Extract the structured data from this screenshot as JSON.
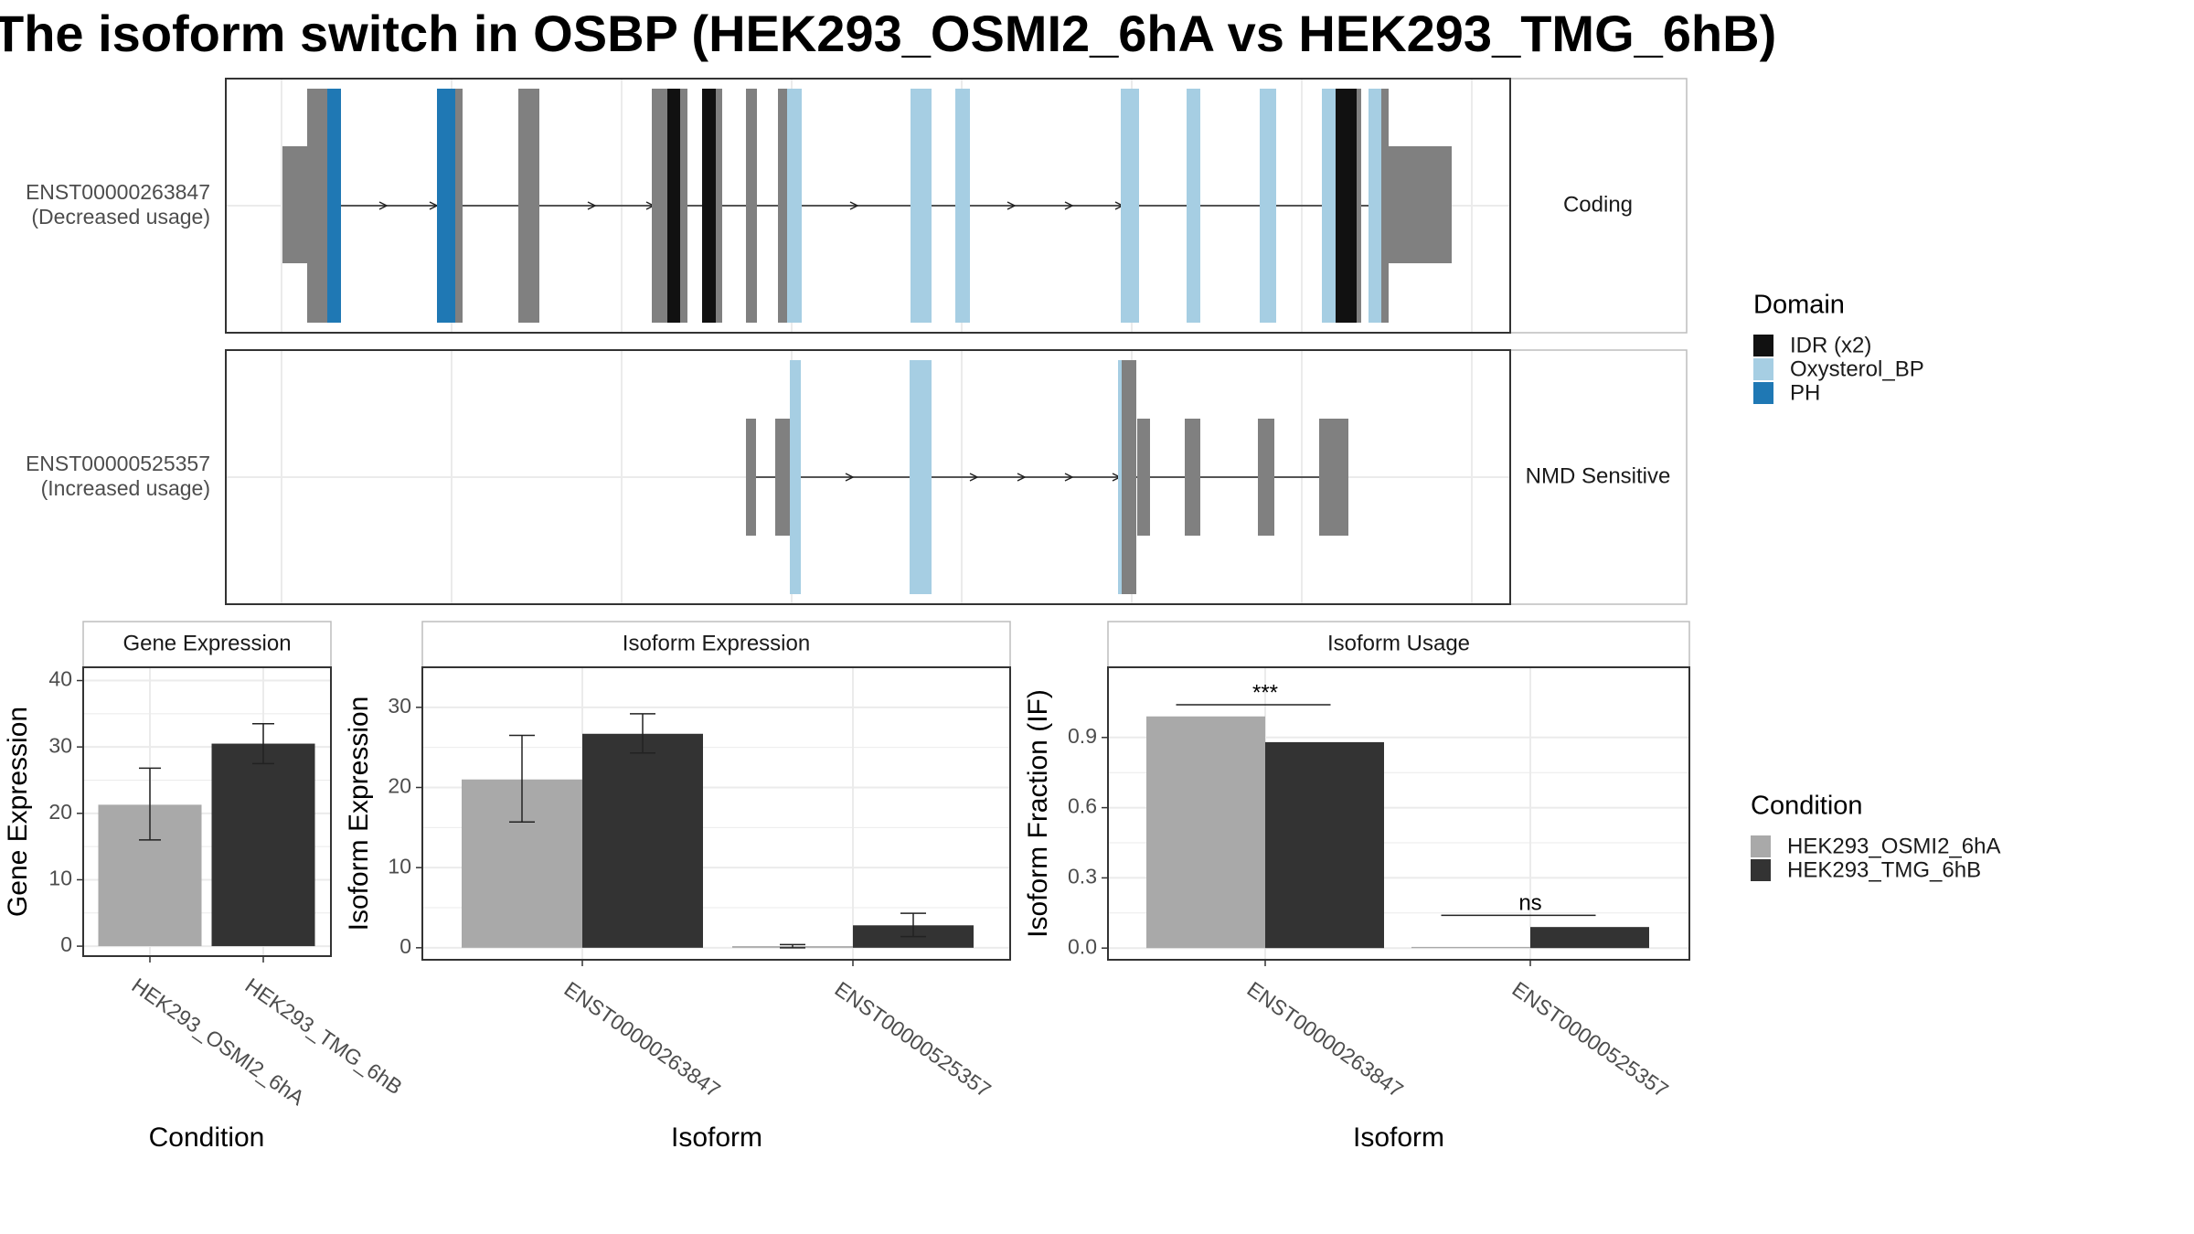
{
  "title": "The isoform switch in OSBP (HEK293_OSMI2_6hA vs HEK293_TMG_6hB)",
  "colors": {
    "idr": "#111111",
    "oxysterol_bp": "#a6cee3",
    "ph": "#1f78b4",
    "exon_gray": "#808080",
    "cond_a": "#a9a9a9",
    "cond_b": "#333333",
    "grid": "#ebebeb",
    "panel_border": "#333333",
    "strip_border": "#bdbdbd"
  },
  "structure": {
    "transcripts": [
      {
        "id": "ENST00000263847",
        "usage": "(Decreased usage)",
        "type": "Coding"
      },
      {
        "id": "ENST00000525357",
        "usage": "(Increased usage)",
        "type": "NMD Sensitive"
      }
    ],
    "legend_title": "Domain",
    "legend_items": [
      {
        "label": "IDR (x2)",
        "color_key": "idr"
      },
      {
        "label": "Oxysterol_BP",
        "color_key": "oxysterol_bp"
      },
      {
        "label": "PH",
        "color_key": "ph"
      }
    ]
  },
  "chart_data": [
    {
      "type": "bar",
      "title": "Gene Expression",
      "xlabel": "Condition",
      "ylabel": "Gene Expression",
      "categories": [
        "HEK293_OSMI2_6hA",
        "HEK293_TMG_6hB"
      ],
      "values": [
        21.3,
        30.5
      ],
      "error": [
        [
          16.0,
          26.8
        ],
        [
          27.5,
          33.5
        ]
      ],
      "ylim": [
        -1.5,
        42
      ],
      "yticks": [
        0,
        10,
        20,
        30,
        40
      ],
      "grid": true
    },
    {
      "type": "bar",
      "title": "Isoform Expression",
      "xlabel": "Isoform",
      "ylabel": "Isoform Expression",
      "categories": [
        "ENST00000263847",
        "ENST00000525357"
      ],
      "series": [
        {
          "name": "HEK293_OSMI2_6hA",
          "values": [
            21.0,
            0.2
          ],
          "error": [
            [
              15.7,
              26.5
            ],
            [
              0.0,
              0.4
            ]
          ]
        },
        {
          "name": "HEK293_TMG_6hB",
          "values": [
            26.7,
            2.8
          ],
          "error": [
            [
              24.3,
              29.2
            ],
            [
              1.4,
              4.3
            ]
          ]
        }
      ],
      "ylim": [
        -1.5,
        35
      ],
      "yticks": [
        0,
        10,
        20,
        30
      ],
      "grid": true
    },
    {
      "type": "bar",
      "title": "Isoform Usage",
      "xlabel": "Isoform",
      "ylabel": "Isoform Fraction (IF)",
      "categories": [
        "ENST00000263847",
        "ENST00000525357"
      ],
      "series": [
        {
          "name": "HEK293_OSMI2_6hA",
          "values": [
            0.99,
            0.005
          ]
        },
        {
          "name": "HEK293_TMG_6hB",
          "values": [
            0.88,
            0.09
          ]
        }
      ],
      "significance": [
        {
          "label": "***",
          "bracket_y": 1.04
        },
        {
          "label": "ns",
          "bracket_y": 0.14
        }
      ],
      "ylim": [
        -0.05,
        1.2
      ],
      "yticks": [
        0.0,
        0.3,
        0.6,
        0.9
      ],
      "grid": true
    }
  ],
  "condition_legend": {
    "title": "Condition",
    "items": [
      {
        "label": "HEK293_OSMI2_6hA",
        "color_key": "cond_a"
      },
      {
        "label": "HEK293_TMG_6hB",
        "color_key": "cond_b"
      }
    ]
  }
}
